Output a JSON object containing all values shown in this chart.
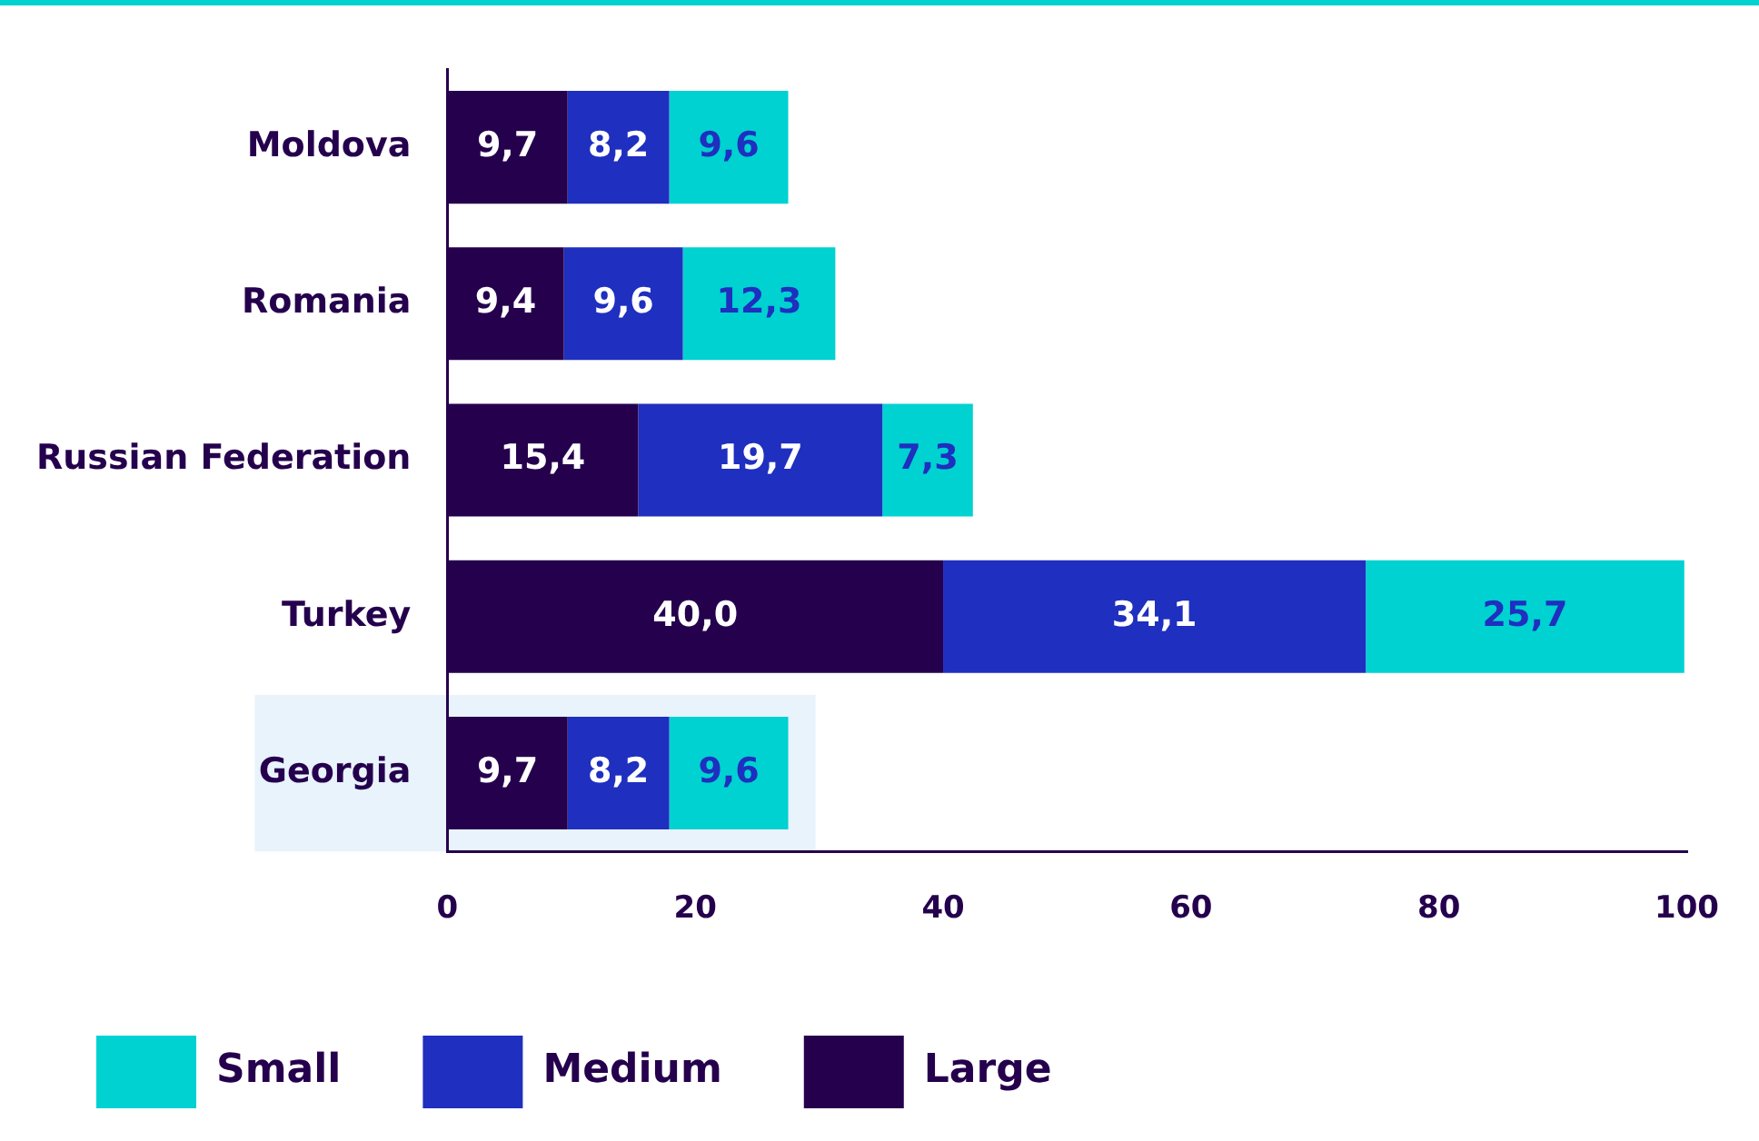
{
  "chart_data": {
    "type": "bar",
    "orientation": "horizontal",
    "stacked": true,
    "categories": [
      "Moldova",
      "Romania",
      "Russian Federation",
      "Turkey",
      "Georgia"
    ],
    "series": [
      {
        "name": "Large",
        "color": "#25004d",
        "values": [
          9.7,
          9.4,
          15.4,
          40.0,
          9.7
        ],
        "value_labels": [
          "9,7",
          "9,4",
          "15,4",
          "40,0",
          "9,7"
        ]
      },
      {
        "name": "Medium",
        "color": "#1f2fbf",
        "values": [
          8.2,
          9.6,
          19.7,
          34.1,
          8.2
        ],
        "value_labels": [
          "8,2",
          "9,6",
          "19,7",
          "34,1",
          "8,2"
        ]
      },
      {
        "name": "Small",
        "color": "#00d1d1",
        "values": [
          9.6,
          12.3,
          7.3,
          25.7,
          9.6
        ],
        "value_labels": [
          "9,6",
          "12,3",
          "7,3",
          "25,7",
          "9,6"
        ]
      }
    ],
    "xlim": [
      0,
      100
    ],
    "xticks": [
      0,
      20,
      40,
      60,
      80,
      100
    ],
    "grid": false,
    "legend": "bottom left",
    "bands": [
      {
        "axis": "y",
        "from": "Georgia",
        "to": "Georgia",
        "color": "#e8f3fc"
      }
    ]
  }
}
